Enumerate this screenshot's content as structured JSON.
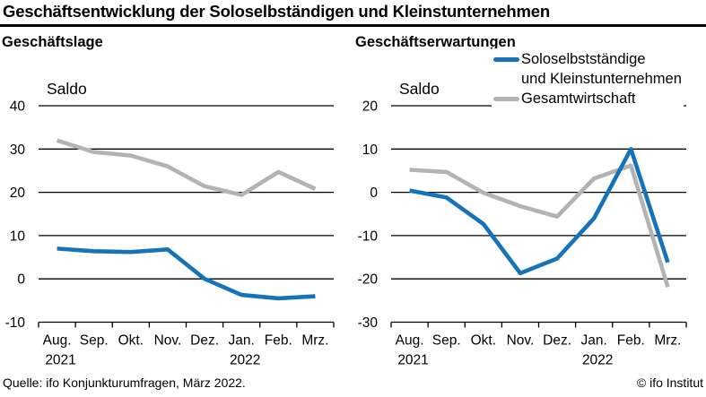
{
  "title": "Geschäftsentwicklung der Soloselbständigen und Kleinstunternehmen",
  "panels": [
    {
      "title": "Geschäftslage"
    },
    {
      "title": "Geschäftserwartungen"
    }
  ],
  "legend": {
    "items": [
      {
        "lines": [
          "Soloselbstständige",
          "und Kleinstunternehmen"
        ],
        "color": "#1773b9"
      },
      {
        "lines": [
          "Gesamtwirtschaft"
        ],
        "color": "#b3b3b3"
      }
    ]
  },
  "footer": {
    "source": "Quelle: ifo Konjunkturumfragen, März 2022.",
    "copyright": "© ifo Institut"
  },
  "colors": {
    "accent_blue": "#1773b9",
    "accent_gray": "#b3b3b3",
    "grid": "#000000"
  },
  "chart_data": [
    {
      "type": "line",
      "title": "Geschäftslage",
      "ylabel": "Saldo",
      "ylim": [
        -10,
        40
      ],
      "ytick_step": 10,
      "grid": true,
      "legend_position": "top-right-of-second-panel",
      "categories": [
        "Aug.",
        "Sep.",
        "Okt.",
        "Nov.",
        "Dez.",
        "Jan.",
        "Feb.",
        "Mrz."
      ],
      "year_labels": [
        {
          "index": 0,
          "text": "2021"
        },
        {
          "index": 5,
          "text": "2022"
        }
      ],
      "series": [
        {
          "name": "Soloselbstständige und Kleinstunternehmen",
          "color": "#1773b9",
          "values": [
            7,
            6.4,
            6.2,
            6.8,
            0,
            -3.7,
            -4.5,
            -4
          ]
        },
        {
          "name": "Gesamtwirtschaft",
          "color": "#b3b3b3",
          "values": [
            32,
            29.3,
            28.5,
            26,
            21.4,
            19.4,
            24.7,
            20.8
          ]
        }
      ]
    },
    {
      "type": "line",
      "title": "Geschäftserwartungen",
      "ylabel": "Saldo",
      "ylim": [
        -30,
        20
      ],
      "ytick_step": 10,
      "grid": true,
      "categories": [
        "Aug.",
        "Sep.",
        "Okt.",
        "Nov.",
        "Dez.",
        "Jan.",
        "Feb.",
        "Mrz."
      ],
      "year_labels": [
        {
          "index": 0,
          "text": "2021"
        },
        {
          "index": 5,
          "text": "2022"
        }
      ],
      "series": [
        {
          "name": "Soloselbstständige und Kleinstunternehmen",
          "color": "#1773b9",
          "values": [
            0.4,
            -1.2,
            -7.3,
            -18.7,
            -15.3,
            -6,
            10,
            -16.2
          ]
        },
        {
          "name": "Gesamtwirtschaft",
          "color": "#b3b3b3",
          "values": [
            5.2,
            4.7,
            -0.1,
            -3.2,
            -5.6,
            3.2,
            6.2,
            -21.9
          ]
        }
      ]
    }
  ]
}
